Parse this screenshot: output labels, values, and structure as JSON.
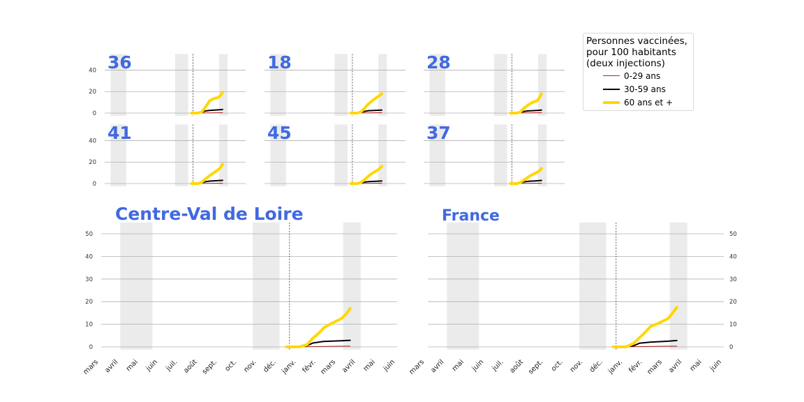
{
  "colors": {
    "young": "#b22222",
    "middle": "#000000",
    "senior": "#ffd700",
    "title": "#4169e1",
    "shade": "#ebebeb",
    "grid": "#b0b0b0"
  },
  "legend": {
    "title": "Personnes vaccinées,\npour 100 habitants\n(deux injections)",
    "items": [
      "0-29 ans",
      "30-59 ans",
      "60 ans et +"
    ]
  },
  "chart_data": [
    {
      "type": "line",
      "title": "36",
      "ylim": [
        0,
        55
      ],
      "series": [
        {
          "name": "0-29 ans",
          "x": [
            "2020-12-27",
            "2021-01-31",
            "2021-02-28",
            "2021-03-31",
            "2021-04-15"
          ],
          "values": [
            0,
            0.1,
            0.2,
            0.3,
            0.3
          ]
        },
        {
          "name": "30-59 ans",
          "x": [
            "2020-12-27",
            "2021-01-15",
            "2021-01-31",
            "2021-02-10",
            "2021-02-28",
            "2021-03-31",
            "2021-04-15"
          ],
          "values": [
            0,
            0,
            0.4,
            1.8,
            2.5,
            3.0,
            3.3
          ]
        },
        {
          "name": "60 ans et +",
          "x": [
            "2020-12-27",
            "2021-01-18",
            "2021-01-31",
            "2021-02-10",
            "2021-02-20",
            "2021-03-01",
            "2021-03-15",
            "2021-03-31",
            "2021-04-08",
            "2021-04-15"
          ],
          "values": [
            0,
            0,
            1.0,
            4.0,
            8.0,
            11.5,
            13.5,
            14.5,
            16.5,
            19.5
          ]
        }
      ]
    },
    {
      "type": "line",
      "title": "18",
      "ylim": [
        0,
        55
      ],
      "series": [
        {
          "name": "0-29 ans",
          "x": [
            "2020-12-27",
            "2021-01-31",
            "2021-02-28",
            "2021-03-31",
            "2021-04-15"
          ],
          "values": [
            0,
            0.1,
            0.2,
            0.3,
            0.3
          ]
        },
        {
          "name": "30-59 ans",
          "x": [
            "2020-12-27",
            "2021-01-15",
            "2021-01-31",
            "2021-02-10",
            "2021-02-28",
            "2021-03-31",
            "2021-04-15"
          ],
          "values": [
            0,
            0,
            0.4,
            1.5,
            2.2,
            2.6,
            2.8
          ]
        },
        {
          "name": "60 ans et +",
          "x": [
            "2020-12-27",
            "2021-01-18",
            "2021-01-31",
            "2021-02-10",
            "2021-02-20",
            "2021-03-01",
            "2021-03-15",
            "2021-03-31",
            "2021-04-08",
            "2021-04-15"
          ],
          "values": [
            0,
            0,
            1.0,
            3.5,
            6.5,
            9.0,
            12.0,
            15.0,
            16.5,
            18.0
          ]
        }
      ]
    },
    {
      "type": "line",
      "title": "28",
      "ylim": [
        0,
        55
      ],
      "series": [
        {
          "name": "0-29 ans",
          "x": [
            "2020-12-27",
            "2021-01-31",
            "2021-02-28",
            "2021-03-31",
            "2021-04-15"
          ],
          "values": [
            0,
            0.1,
            0.2,
            0.3,
            0.3
          ]
        },
        {
          "name": "30-59 ans",
          "x": [
            "2020-12-27",
            "2021-01-15",
            "2021-01-31",
            "2021-02-10",
            "2021-02-28",
            "2021-03-31",
            "2021-04-15"
          ],
          "values": [
            0,
            0,
            0.4,
            1.4,
            2.0,
            2.5,
            2.7
          ]
        },
        {
          "name": "60 ans et +",
          "x": [
            "2020-12-27",
            "2021-01-18",
            "2021-01-31",
            "2021-02-10",
            "2021-02-20",
            "2021-03-01",
            "2021-03-15",
            "2021-03-31",
            "2021-04-08",
            "2021-04-15"
          ],
          "values": [
            0,
            0,
            1.0,
            4.0,
            6.0,
            8.0,
            10.0,
            11.5,
            14.5,
            18.0
          ]
        }
      ]
    },
    {
      "type": "line",
      "title": "41",
      "ylim": [
        0,
        55
      ],
      "series": [
        {
          "name": "0-29 ans",
          "x": [
            "2020-12-27",
            "2021-01-31",
            "2021-02-28",
            "2021-03-31",
            "2021-04-15"
          ],
          "values": [
            0,
            0.1,
            0.2,
            0.3,
            0.3
          ]
        },
        {
          "name": "30-59 ans",
          "x": [
            "2020-12-27",
            "2021-01-15",
            "2021-01-31",
            "2021-02-10",
            "2021-02-28",
            "2021-03-31",
            "2021-04-15"
          ],
          "values": [
            0,
            0,
            0.4,
            1.5,
            2.3,
            2.8,
            3.0
          ]
        },
        {
          "name": "60 ans et +",
          "x": [
            "2020-12-27",
            "2021-01-18",
            "2021-01-31",
            "2021-02-10",
            "2021-02-20",
            "2021-03-01",
            "2021-03-15",
            "2021-03-31",
            "2021-04-08",
            "2021-04-15"
          ],
          "values": [
            0,
            0,
            1.0,
            3.5,
            5.5,
            7.5,
            10.0,
            13.0,
            15.0,
            18.0
          ]
        }
      ]
    },
    {
      "type": "line",
      "title": "45",
      "ylim": [
        0,
        55
      ],
      "series": [
        {
          "name": "0-29 ans",
          "x": [
            "2020-12-27",
            "2021-01-31",
            "2021-02-28",
            "2021-03-31",
            "2021-04-15"
          ],
          "values": [
            0,
            0.1,
            0.2,
            0.3,
            0.3
          ]
        },
        {
          "name": "30-59 ans",
          "x": [
            "2020-12-27",
            "2021-01-15",
            "2021-01-31",
            "2021-02-10",
            "2021-02-28",
            "2021-03-31",
            "2021-04-15"
          ],
          "values": [
            0,
            0,
            0.4,
            1.3,
            1.8,
            2.2,
            2.4
          ]
        },
        {
          "name": "60 ans et +",
          "x": [
            "2020-12-27",
            "2021-01-18",
            "2021-01-31",
            "2021-02-10",
            "2021-02-20",
            "2021-03-01",
            "2021-03-15",
            "2021-03-31",
            "2021-04-08",
            "2021-04-15"
          ],
          "values": [
            0,
            0,
            1.0,
            3.0,
            5.0,
            7.5,
            10.0,
            12.5,
            14.0,
            16.0
          ]
        }
      ]
    },
    {
      "type": "line",
      "title": "37",
      "ylim": [
        0,
        55
      ],
      "series": [
        {
          "name": "0-29 ans",
          "x": [
            "2020-12-27",
            "2021-01-31",
            "2021-02-28",
            "2021-03-31",
            "2021-04-15"
          ],
          "values": [
            0,
            0.1,
            0.2,
            0.3,
            0.3
          ]
        },
        {
          "name": "30-59 ans",
          "x": [
            "2020-12-27",
            "2021-01-15",
            "2021-01-31",
            "2021-02-10",
            "2021-02-28",
            "2021-03-31",
            "2021-04-15"
          ],
          "values": [
            0,
            0,
            0.4,
            1.4,
            2.1,
            2.6,
            2.9
          ]
        },
        {
          "name": "60 ans et +",
          "x": [
            "2020-12-27",
            "2021-01-18",
            "2021-01-31",
            "2021-02-10",
            "2021-02-20",
            "2021-03-01",
            "2021-03-15",
            "2021-03-31",
            "2021-04-08",
            "2021-04-15"
          ],
          "values": [
            0,
            0,
            1.0,
            3.0,
            4.5,
            6.5,
            8.5,
            10.5,
            12.0,
            14.0
          ]
        }
      ]
    },
    {
      "type": "line",
      "title": "Centre-Val de Loire",
      "ylim": [
        0,
        55
      ],
      "yticks": [
        0,
        10,
        20,
        30,
        40,
        50
      ],
      "xticklabels": [
        "mars",
        "avril",
        "mai",
        "juin",
        "juil.",
        "août",
        "sept.",
        "oct.",
        "nov.",
        "déc.",
        "janv.",
        "févr.",
        "mars",
        "avril",
        "mai",
        "juin"
      ],
      "series": [
        {
          "name": "0-29 ans",
          "x": [
            "2020-12-27",
            "2021-01-31",
            "2021-02-28",
            "2021-03-31",
            "2021-04-15"
          ],
          "values": [
            0,
            0.1,
            0.2,
            0.3,
            0.3
          ]
        },
        {
          "name": "30-59 ans",
          "x": [
            "2020-12-27",
            "2021-01-15",
            "2021-01-31",
            "2021-02-10",
            "2021-02-28",
            "2021-03-31",
            "2021-04-15"
          ],
          "values": [
            0,
            0,
            0.5,
            1.7,
            2.4,
            2.7,
            2.9
          ]
        },
        {
          "name": "60 ans et +",
          "x": [
            "2020-12-27",
            "2021-01-18",
            "2021-01-31",
            "2021-02-10",
            "2021-02-20",
            "2021-03-01",
            "2021-03-15",
            "2021-03-31",
            "2021-04-08",
            "2021-04-15"
          ],
          "values": [
            0,
            0,
            1.0,
            3.8,
            6.0,
            8.5,
            10.5,
            12.5,
            14.5,
            17.0
          ]
        }
      ]
    },
    {
      "type": "line",
      "title": "France",
      "ylim": [
        0,
        55
      ],
      "yticks": [
        0,
        10,
        20,
        30,
        40,
        50
      ],
      "xticklabels": [
        "mars",
        "avril",
        "mai",
        "juin",
        "juil.",
        "août",
        "sept.",
        "oct.",
        "nov.",
        "déc.",
        "janv.",
        "févr.",
        "mars",
        "avril",
        "mai",
        "juin"
      ],
      "series": [
        {
          "name": "0-29 ans",
          "x": [
            "2020-12-27",
            "2021-01-31",
            "2021-02-28",
            "2021-03-31",
            "2021-04-15"
          ],
          "values": [
            0,
            0.1,
            0.2,
            0.3,
            0.3
          ]
        },
        {
          "name": "30-59 ans",
          "x": [
            "2020-12-27",
            "2021-01-15",
            "2021-01-31",
            "2021-02-10",
            "2021-02-28",
            "2021-03-31",
            "2021-04-15"
          ],
          "values": [
            0,
            0,
            0.5,
            1.6,
            2.1,
            2.5,
            2.8
          ]
        },
        {
          "name": "60 ans et +",
          "x": [
            "2020-12-27",
            "2021-01-18",
            "2021-01-31",
            "2021-02-10",
            "2021-02-20",
            "2021-03-01",
            "2021-03-15",
            "2021-03-31",
            "2021-04-08",
            "2021-04-15"
          ],
          "values": [
            0,
            0,
            1.5,
            4.0,
            6.5,
            9.0,
            10.5,
            12.5,
            15.0,
            17.5
          ]
        }
      ]
    }
  ]
}
